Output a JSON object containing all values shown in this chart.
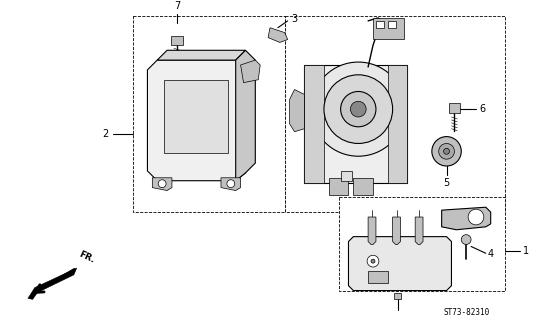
{
  "diagram_code": "ST73-82310",
  "background_color": "#ffffff",
  "figsize": [
    5.42,
    3.2
  ],
  "dpi": 100,
  "lw_main": 0.8,
  "lw_thin": 0.5,
  "lw_dash": 0.6,
  "gray_light": "#e0e0e0",
  "gray_mid": "#c0c0c0",
  "gray_dark": "#888888",
  "label_fontsize": 7,
  "code_fontsize": 5.5
}
